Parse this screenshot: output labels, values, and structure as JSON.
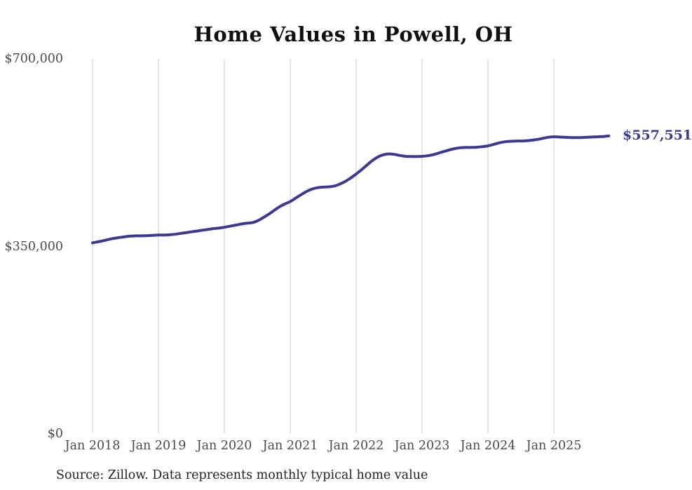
{
  "title": "Home Values in Powell, OH",
  "source_note": "Source: Zillow. Data represents monthly typical home value",
  "end_label": "$557,551",
  "colors": {
    "background": "#ffffff",
    "line": "#3b3a90",
    "end_label": "#3b3a90",
    "grid": "#cccccc",
    "axis_text": "#4a4a4a",
    "title_text": "#111111",
    "source_text": "#222222"
  },
  "chart_data": {
    "type": "line",
    "title": "Home Values in Powell, OH",
    "xlabel": "",
    "ylabel": "",
    "ylim": [
      0,
      700000
    ],
    "grid": "vertical-only",
    "legend": "none",
    "x_tick_labels": [
      "Jan 2018",
      "Jan 2019",
      "Jan 2020",
      "Jan 2021",
      "Jan 2022",
      "Jan 2023",
      "Jan 2024",
      "Jan 2025"
    ],
    "y_ticks": [
      {
        "value": 700000,
        "label": "$700,000"
      },
      {
        "value": 350000,
        "label": "$350,000"
      },
      {
        "value": 0,
        "label": "$0"
      }
    ],
    "series": [
      {
        "name": "Monthly typical home value",
        "frequency": "monthly",
        "x_start": "2018-01",
        "x_end": "2025-11",
        "final_value": 557551,
        "final_label": "$557,551",
        "values": [
          358000,
          360000,
          362000,
          364500,
          366500,
          368000,
          369500,
          370500,
          371000,
          371000,
          371500,
          372000,
          372500,
          372500,
          373000,
          374000,
          375500,
          377000,
          378500,
          380000,
          381500,
          383000,
          384500,
          385500,
          387000,
          389000,
          391000,
          393000,
          394500,
          395500,
          399000,
          404500,
          411000,
          418000,
          425000,
          430500,
          435000,
          441500,
          448000,
          454000,
          458500,
          461000,
          462000,
          462500,
          464000,
          467500,
          472500,
          479000,
          486500,
          494500,
          503500,
          512000,
          518500,
          522500,
          524000,
          523000,
          521000,
          519500,
          519000,
          519000,
          519500,
          520500,
          522500,
          525500,
          528500,
          531500,
          534000,
          535500,
          536000,
          536000,
          536500,
          537500,
          539000,
          541500,
          544500,
          546500,
          547500,
          548000,
          548000,
          548500,
          549500,
          551000,
          553000,
          555000,
          556000,
          555500,
          555000,
          554500,
          554500,
          554500,
          555000,
          555500,
          556000,
          556500,
          557551
        ]
      }
    ]
  }
}
